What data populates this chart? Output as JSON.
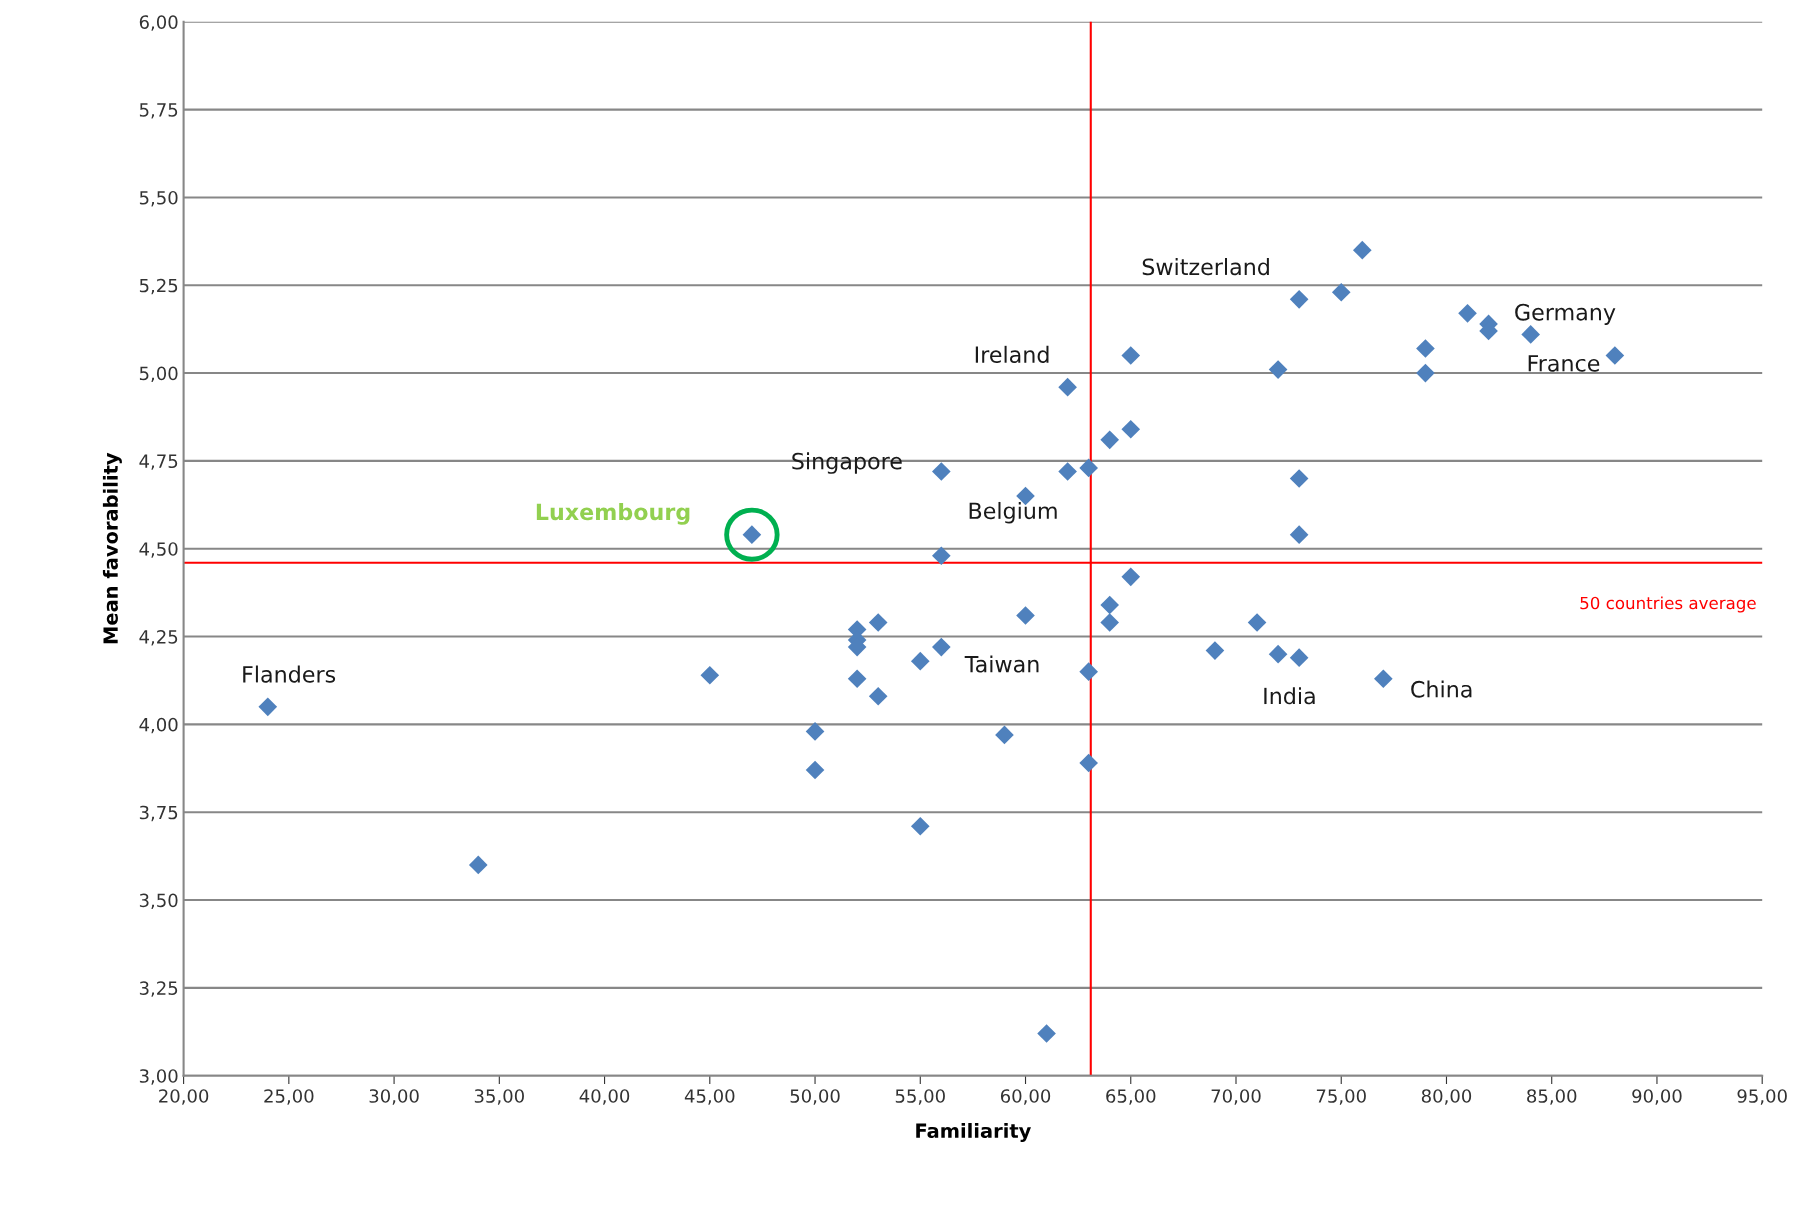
{
  "chart_data": {
    "type": "scatter",
    "xlabel": "Familiarity",
    "ylabel": "Mean favorability",
    "series": [
      {
        "color": "#4f81bd",
        "marker": "diamond",
        "x": [
          24,
          34,
          45,
          47,
          50,
          50,
          52,
          52,
          52,
          52,
          53,
          53,
          55,
          55,
          56,
          56,
          56,
          59,
          60,
          60,
          61,
          62,
          62,
          63,
          63,
          63,
          64,
          64,
          64,
          65,
          65,
          65,
          69,
          71,
          72,
          72,
          73,
          73,
          73,
          73,
          75,
          76,
          77,
          79,
          79,
          81,
          82,
          82,
          84,
          88
        ],
        "values": [
          4.05,
          3.6,
          4.14,
          4.54,
          3.98,
          3.87,
          4.27,
          4.24,
          4.22,
          4.13,
          4.29,
          4.08,
          4.18,
          3.71,
          4.72,
          4.48,
          4.22,
          3.97,
          4.65,
          4.31,
          3.12,
          4.96,
          4.72,
          4.73,
          4.15,
          3.89,
          4.81,
          4.34,
          4.29,
          5.05,
          4.84,
          4.42,
          4.21,
          4.29,
          5.01,
          4.2,
          5.21,
          4.7,
          4.54,
          4.19,
          5.23,
          5.35,
          4.13,
          5.07,
          5.0,
          5.17,
          5.14,
          5.12,
          5.11,
          5.05
        ]
      }
    ],
    "xlim": [
      20,
      95
    ],
    "ylim": [
      3,
      6
    ],
    "xticks": [
      {
        "value": 20,
        "label": "20,00"
      },
      {
        "value": 25,
        "label": "25,00"
      },
      {
        "value": 30,
        "label": "30,00"
      },
      {
        "value": 35,
        "label": "35,00"
      },
      {
        "value": 40,
        "label": "40,00"
      },
      {
        "value": 45,
        "label": "45,00"
      },
      {
        "value": 50,
        "label": "50,00"
      },
      {
        "value": 55,
        "label": "55,00"
      },
      {
        "value": 60,
        "label": "60,00"
      },
      {
        "value": 65,
        "label": "65,00"
      },
      {
        "value": 70,
        "label": "70,00"
      },
      {
        "value": 75,
        "label": "75,00"
      },
      {
        "value": 80,
        "label": "80,00"
      },
      {
        "value": 85,
        "label": "85,00"
      },
      {
        "value": 90,
        "label": "90,00"
      },
      {
        "value": 95,
        "label": "95,00"
      }
    ],
    "yticks": [
      {
        "value": 3,
        "label": "3,00"
      },
      {
        "value": 3.25,
        "label": "3,25"
      },
      {
        "value": 3.5,
        "label": "3,50"
      },
      {
        "value": 3.75,
        "label": "3,75"
      },
      {
        "value": 4,
        "label": "4,00"
      },
      {
        "value": 4.25,
        "label": "4,25"
      },
      {
        "value": 4.5,
        "label": "4,50"
      },
      {
        "value": 4.75,
        "label": "4,75"
      },
      {
        "value": 5,
        "label": "5,00"
      },
      {
        "value": 5.25,
        "label": "5,25"
      },
      {
        "value": 5.5,
        "label": "5,50"
      },
      {
        "value": 5.75,
        "label": "5,75"
      },
      {
        "value": 6,
        "label": "6,00"
      }
    ],
    "grid": "y",
    "ref_lines": [
      {
        "axis": "x",
        "value": 63.1,
        "color": "#ff0000"
      },
      {
        "axis": "y",
        "value": 4.46,
        "label": "50 countries average",
        "color": "#ff0000"
      }
    ],
    "annotations": [
      {
        "text": "Luxembourg",
        "x": 47,
        "y": 4.54
      },
      {
        "text": "Flanders",
        "x": 24,
        "y": 4.05
      },
      {
        "text": "Singapore",
        "x": 56,
        "y": 4.72
      },
      {
        "text": "Belgium",
        "x": 60,
        "y": 4.65
      },
      {
        "text": "Ireland",
        "x": 62,
        "y": 4.96
      },
      {
        "text": "Switzerland",
        "x": 73,
        "y": 5.21
      },
      {
        "text": "Germany",
        "x": 82,
        "y": 5.14
      },
      {
        "text": "France",
        "x": 88,
        "y": 5.05
      },
      {
        "text": "Taiwan",
        "x": 63,
        "y": 4.15
      },
      {
        "text": "India",
        "x": 73,
        "y": 4.19
      },
      {
        "text": "China",
        "x": 77,
        "y": 4.13
      }
    ]
  }
}
